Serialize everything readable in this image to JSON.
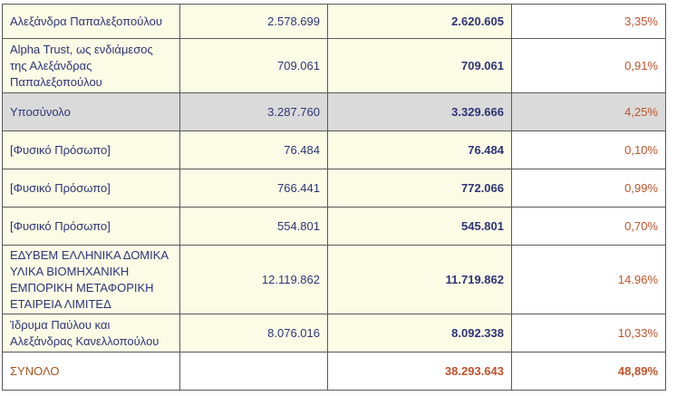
{
  "rows": [
    {
      "name": "Αλεξάνδρα Παπαλεξοπούλου",
      "value1": "2.578.699",
      "value2": "2.620.605",
      "percent": "3,35%"
    },
    {
      "name": "Alpha Trust, ως ενδιάμεσος της Αλεξάνδρας Παπαλεξοπούλου",
      "value1": "709.061",
      "value2": "709.061",
      "percent": "0,91%"
    },
    {
      "name": "Υποσύνολο",
      "value1": "3.287.760",
      "value2": "3.329.666",
      "percent": "4,25%"
    },
    {
      "name": "[Φυσικό Πρόσωπο]",
      "value1": "76.484",
      "value2": "76.484",
      "percent": "0,10%"
    },
    {
      "name": "[Φυσικό Πρόσωπο]",
      "value1": "766.441",
      "value2": "772.066",
      "percent": "0,99%"
    },
    {
      "name": "[Φυσικό Πρόσωπο]",
      "value1": "554.801",
      "value2": "545.801",
      "percent": "0,70%"
    },
    {
      "name": "ΕΔΥΒΕΜ ΕΛΛΗΝΙΚΑ ΔΟΜΙΚΑ ΥΛΙΚΑ ΒΙΟΜΗΧΑΝΙΚΗ ΕΜΠΟΡΙΚΗ ΜΕΤΑΦΟΡΙΚΗ ΕΤΑΙΡΕΙΑ ΛΙΜΙΤΕΔ",
      "value1": "12.119.862",
      "value2": "11.719.862",
      "percent": "14.96%"
    },
    {
      "name": "Ίδρυμα Παύλου και Αλεξάνδρας Κανελλοπούλου",
      "value1": "8.076.016",
      "value2": "8.092.338",
      "percent": "10,33%"
    }
  ],
  "total": {
    "name": "ΣΥΝΟΛΟ",
    "value1": "",
    "value2": "38.293.643",
    "percent": "48,89%"
  }
}
